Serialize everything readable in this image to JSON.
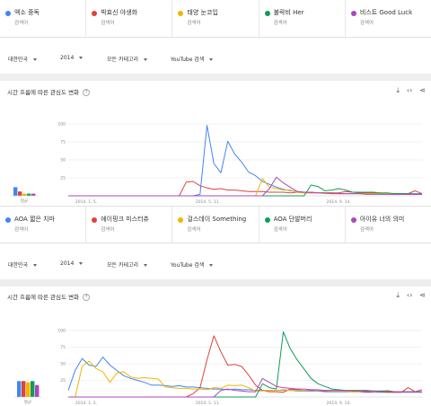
{
  "charts": [
    {
      "terms": [
        {
          "name": "엑소 중독",
          "sub": "검색어",
          "color": "#4285f4"
        },
        {
          "name": "박효신 야생화",
          "sub": "검색어",
          "color": "#db4437"
        },
        {
          "name": "태양 눈코입",
          "sub": "검색어",
          "color": "#f4b400"
        },
        {
          "name": "불락비 Her",
          "sub": "검색어",
          "color": "#0f9d58"
        },
        {
          "name": "비스트 Good Luck",
          "sub": "검색어",
          "color": "#ab47bc"
        }
      ],
      "filters": {
        "region": "대한민국",
        "year": "2014",
        "category": "모든 카테고리",
        "source": "YouTube 검색"
      },
      "title": "시간 흐름에 따른 관심도 변화",
      "help": "?",
      "avg_label": "평균",
      "averages": [
        12,
        6,
        3,
        3,
        3
      ],
      "chart_data": {
        "type": "line",
        "x_labels": [
          "2014. 1. 5.",
          "2014. 5. 11.",
          "2014. 9. 14."
        ],
        "y_ticks": [
          25,
          50,
          75,
          100
        ],
        "ylim": [
          0,
          100
        ],
        "grid": true,
        "series": [
          {
            "name": "엑소 중독",
            "values": [
              0,
              0,
              0,
              0,
              0,
              0,
              0,
              0,
              0,
              0,
              0,
              0,
              0,
              0,
              0,
              0,
              0,
              0,
              0,
              2,
              98,
              45,
              32,
              76,
              58,
              47,
              33,
              28,
              20,
              16,
              12,
              9,
              7,
              6,
              5,
              5,
              4,
              4,
              4,
              3,
              3,
              3,
              3,
              3,
              3,
              3,
              3,
              3,
              3,
              3,
              3,
              3
            ]
          },
          {
            "name": "박효신 야생화",
            "values": [
              0,
              0,
              0,
              0,
              0,
              0,
              0,
              0,
              0,
              0,
              0,
              0,
              0,
              0,
              0,
              0,
              0,
              19,
              20,
              14,
              11,
              9,
              10,
              8,
              8,
              7,
              6,
              6,
              6,
              5,
              5,
              5,
              4,
              5,
              4,
              4,
              4,
              4,
              4,
              4,
              6,
              5,
              4,
              4,
              4,
              3,
              3,
              3,
              3,
              3,
              7,
              3
            ]
          },
          {
            "name": "태양 눈코입",
            "values": [
              0,
              0,
              0,
              0,
              0,
              0,
              0,
              0,
              0,
              0,
              0,
              0,
              0,
              0,
              0,
              0,
              0,
              0,
              0,
              0,
              0,
              0,
              0,
              0,
              0,
              0,
              0,
              0,
              24,
              12,
              10,
              8,
              8,
              5,
              4,
              5,
              4,
              3,
              3,
              3,
              3,
              3,
              3,
              3,
              3,
              3,
              3,
              2,
              2,
              2,
              2,
              2
            ]
          },
          {
            "name": "불락비 Her",
            "values": [
              0,
              0,
              0,
              0,
              0,
              0,
              0,
              0,
              0,
              0,
              0,
              0,
              0,
              0,
              0,
              0,
              0,
              0,
              0,
              0,
              0,
              0,
              0,
              0,
              0,
              0,
              0,
              0,
              0,
              0,
              0,
              0,
              0,
              0,
              0,
              15,
              13,
              7,
              8,
              10,
              8,
              5,
              5,
              5,
              5,
              4,
              4,
              3,
              3,
              3,
              2,
              2
            ]
          },
          {
            "name": "비스트 Good Luck",
            "values": [
              0,
              0,
              0,
              0,
              0,
              0,
              0,
              0,
              0,
              0,
              0,
              0,
              0,
              0,
              0,
              0,
              0,
              0,
              0,
              0,
              0,
              0,
              0,
              0,
              0,
              0,
              0,
              0,
              0,
              10,
              26,
              18,
              12,
              6,
              5,
              5,
              4,
              4,
              3,
              3,
              3,
              3,
              3,
              2,
              2,
              2,
              2,
              2,
              2,
              2,
              2,
              3
            ]
          }
        ]
      }
    },
    {
      "terms": [
        {
          "name": "AOA 짧은 치마",
          "sub": "검색어",
          "color": "#4285f4"
        },
        {
          "name": "에이핑크 미스터츄",
          "sub": "검색어",
          "color": "#db4437"
        },
        {
          "name": "걸스데이 Something",
          "sub": "검색어",
          "color": "#f4b400"
        },
        {
          "name": "AOA 단발머리",
          "sub": "검색어",
          "color": "#0f9d58"
        },
        {
          "name": "아이유 너의 의미",
          "sub": "검색어",
          "color": "#ab47bc"
        }
      ],
      "filters": {
        "region": "대한민국",
        "year": "2014",
        "category": "모든 카테고리",
        "source": "YouTube 검색"
      },
      "title": "시간 흐름에 따른 관심도 변화",
      "help": "?",
      "avg_label": "평균",
      "averages": [
        24,
        24,
        22,
        24,
        18
      ],
      "chart_data": {
        "type": "line",
        "x_labels": [
          "2014. 1. 5.",
          "2014. 5. 11.",
          "2014. 9. 14."
        ],
        "y_ticks": [
          25,
          50,
          75,
          100
        ],
        "ylim": [
          0,
          100
        ],
        "grid": true,
        "series": [
          {
            "name": "AOA 짧은 치마",
            "values": [
              10,
              40,
              58,
              48,
              46,
              60,
              48,
              40,
              32,
              28,
              25,
              22,
              18,
              18,
              17,
              16,
              17,
              15,
              15,
              14,
              13,
              12,
              12,
              11,
              12,
              11,
              11,
              10,
              10,
              10,
              10,
              10,
              10,
              9,
              9,
              9,
              9,
              8,
              8,
              8,
              8,
              8,
              8,
              7,
              7,
              7,
              7,
              7,
              7,
              7,
              7,
              7
            ]
          },
          {
            "name": "에이핑크 미스터츄",
            "values": [
              0,
              0,
              0,
              0,
              0,
              0,
              0,
              0,
              0,
              0,
              0,
              0,
              0,
              0,
              0,
              0,
              0,
              0,
              5,
              14,
              56,
              92,
              68,
              48,
              49,
              46,
              33,
              18,
              10,
              8,
              8,
              7,
              12,
              11,
              10,
              10,
              10,
              9,
              9,
              9,
              9,
              8,
              8,
              8,
              8,
              8,
              7,
              7,
              7,
              14,
              8,
              11
            ]
          },
          {
            "name": "걸스데이 Something",
            "values": [
              0,
              0,
              46,
              54,
              43,
              38,
              22,
              36,
              38,
              30,
              28,
              29,
              28,
              27,
              15,
              14,
              13,
              13,
              12,
              12,
              11,
              14,
              13,
              18,
              17,
              18,
              14,
              9,
              9,
              10,
              10,
              11,
              10,
              10,
              10,
              11,
              10,
              10,
              9,
              9,
              9,
              8,
              8,
              10,
              8,
              8,
              10,
              8,
              8,
              8,
              8,
              8
            ]
          },
          {
            "name": "AOA 단발머리",
            "values": [
              0,
              0,
              0,
              0,
              0,
              0,
              0,
              0,
              0,
              0,
              0,
              0,
              0,
              0,
              0,
              0,
              0,
              0,
              0,
              0,
              0,
              0,
              0,
              0,
              0,
              0,
              0,
              0,
              20,
              14,
              12,
              98,
              73,
              56,
              42,
              28,
              20,
              16,
              12,
              11,
              10,
              10,
              10,
              10,
              9,
              9,
              9,
              8,
              8,
              8,
              8,
              8
            ]
          },
          {
            "name": "아이유 너의 의미",
            "values": [
              0,
              0,
              0,
              0,
              0,
              0,
              0,
              0,
              0,
              0,
              0,
              0,
              0,
              0,
              0,
              0,
              0,
              0,
              0,
              0,
              0,
              0,
              10,
              12,
              10,
              9,
              8,
              8,
              28,
              22,
              16,
              14,
              13,
              12,
              12,
              11,
              11,
              10,
              10,
              10,
              10,
              9,
              9,
              9,
              9,
              8,
              8,
              8,
              8,
              8,
              8,
              8
            ]
          }
        ]
      }
    }
  ]
}
